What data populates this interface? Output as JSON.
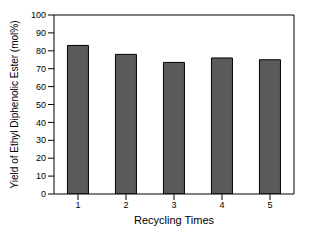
{
  "chart_data": {
    "type": "bar",
    "x_label": "Recycling Times",
    "y_label": "Yield of Ethyl Diphenolic Ester (mol%)",
    "categories": [
      "1",
      "2",
      "3",
      "4",
      "5"
    ],
    "values": [
      83,
      78,
      73.5,
      76,
      75
    ],
    "color": "#5a5a5a",
    "ylim": [
      0,
      100
    ],
    "yticks": [
      0,
      10,
      20,
      30,
      40,
      50,
      60,
      70,
      80,
      90,
      100
    ],
    "grid": false
  }
}
